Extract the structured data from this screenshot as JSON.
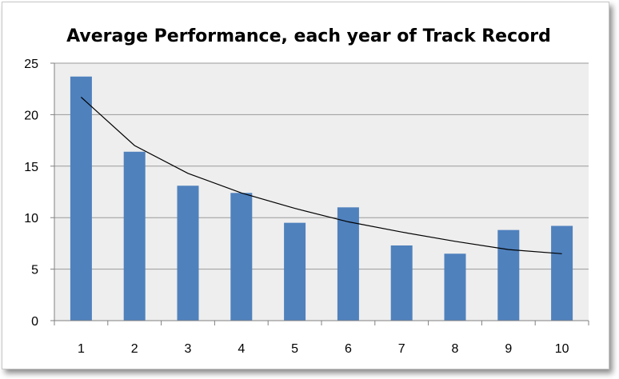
{
  "chart_data": {
    "type": "bar",
    "title": "Average Performance, each year of Track Record",
    "xlabel": "",
    "ylabel": "",
    "categories": [
      "1",
      "2",
      "3",
      "4",
      "5",
      "6",
      "7",
      "8",
      "9",
      "10"
    ],
    "values": [
      23.7,
      16.4,
      13.1,
      12.4,
      9.5,
      11.0,
      7.3,
      6.5,
      8.8,
      9.2
    ],
    "trendline": {
      "type": "logarithmic",
      "values": [
        21.7,
        17.0,
        14.3,
        12.4,
        10.9,
        9.6,
        8.6,
        7.7,
        6.9,
        6.5
      ]
    },
    "ylim": [
      0,
      25
    ],
    "yticks": [
      "0",
      "5",
      "10",
      "15",
      "20",
      "25"
    ],
    "grid": true,
    "legend": "none",
    "colors": {
      "bar": "#4f81bd",
      "plot_background": "#eeeeee",
      "gridline": "#9a9a9a",
      "trendline": "#000000"
    }
  }
}
